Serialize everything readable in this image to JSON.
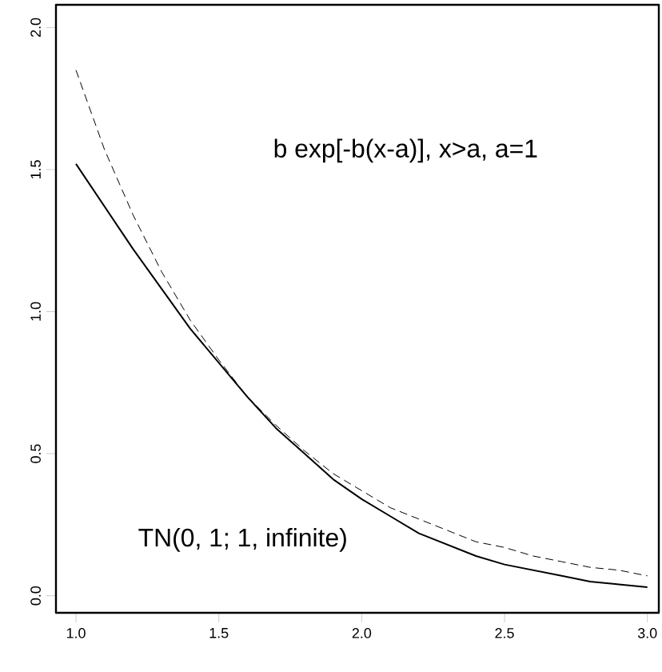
{
  "chart_data": {
    "type": "line",
    "x": [
      1.0,
      1.1,
      1.2,
      1.3,
      1.4,
      1.5,
      1.6,
      1.7,
      1.8,
      1.9,
      2.0,
      2.1,
      2.2,
      2.3,
      2.4,
      2.5,
      2.6,
      2.7,
      2.8,
      2.9,
      3.0
    ],
    "series": [
      {
        "color": "#000000",
        "line_style": "solid",
        "values": [
          1.52,
          1.37,
          1.22,
          1.08,
          0.94,
          0.82,
          0.7,
          0.59,
          0.5,
          0.41,
          0.34,
          0.28,
          0.22,
          0.18,
          0.14,
          0.11,
          0.09,
          0.07,
          0.05,
          0.04,
          0.03
        ]
      },
      {
        "color": "#000000",
        "line_style": "dashed",
        "values": [
          1.85,
          1.57,
          1.34,
          1.14,
          0.97,
          0.83,
          0.7,
          0.6,
          0.51,
          0.43,
          0.37,
          0.31,
          0.27,
          0.23,
          0.19,
          0.17,
          0.14,
          0.12,
          0.1,
          0.09,
          0.07
        ]
      }
    ],
    "xlim": [
      0.93,
      3.04
    ],
    "ylim": [
      -0.06,
      2.08
    ],
    "xticks": [
      {
        "value": 1,
        "label": "1.0"
      },
      {
        "value": 1.5,
        "label": "1.5"
      },
      {
        "value": 2,
        "label": "2.0"
      },
      {
        "value": 2.5,
        "label": "2.5"
      },
      {
        "value": 3,
        "label": "3.0"
      }
    ],
    "yticks": [
      {
        "value": 0,
        "label": "0.0"
      },
      {
        "value": 0.5,
        "label": "0.5"
      },
      {
        "value": 1,
        "label": "1.0"
      },
      {
        "value": 1.5,
        "label": "1.5"
      },
      {
        "value": 2,
        "label": "2.0"
      }
    ],
    "annotations": [
      "b exp[-b(x-a)], x>a, a=1",
      "TN(0, 1; 1, infinite)"
    ],
    "grid": false,
    "marker": "none"
  }
}
